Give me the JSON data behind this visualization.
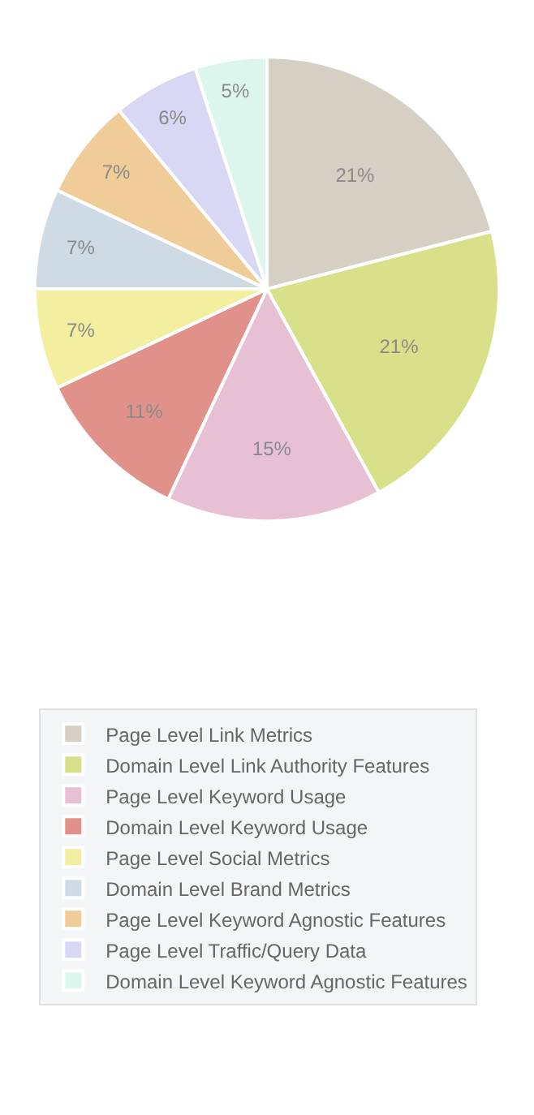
{
  "chart_data": {
    "type": "pie",
    "categories": [
      "Page Level Link Metrics",
      "Domain Level Link Authority Features",
      "Page Level Keyword Usage",
      "Domain Level Keyword Usage",
      "Page Level Social Metrics",
      "Domain Level Brand Metrics",
      "Page Level Keyword Agnostic Features",
      "Page Level Traffic/Query Data",
      "Domain Level Keyword Agnostic Features"
    ],
    "values": [
      21,
      21,
      15,
      11,
      7,
      7,
      7,
      6,
      5
    ],
    "value_labels": [
      "21%",
      "21%",
      "15%",
      "11%",
      "7%",
      "7%",
      "7%",
      "6%",
      "5%"
    ],
    "colors": [
      "#d5cfc4",
      "#d8e08a",
      "#e8c0d4",
      "#e0928a",
      "#f3eea0",
      "#cfdbe4",
      "#efcc98",
      "#d8d8f4",
      "#dcf6ee"
    ],
    "legend": "bottom"
  }
}
